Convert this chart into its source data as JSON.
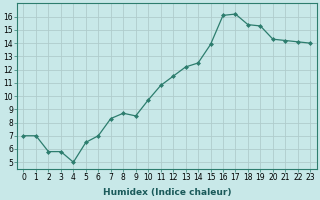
{
  "x": [
    0,
    1,
    2,
    3,
    4,
    5,
    6,
    7,
    8,
    9,
    10,
    11,
    12,
    13,
    14,
    15,
    16,
    17,
    18,
    19,
    20,
    21,
    22,
    23
  ],
  "y": [
    7.0,
    7.0,
    5.8,
    5.8,
    5.0,
    6.5,
    7.0,
    8.3,
    8.7,
    8.5,
    9.7,
    10.8,
    11.5,
    12.2,
    12.5,
    13.9,
    16.1,
    16.2,
    15.4,
    15.3,
    14.3,
    14.2,
    14.1,
    14.0
  ],
  "line_color": "#2d7d6e",
  "marker": "D",
  "marker_size": 2.0,
  "line_width": 0.9,
  "bg_color": "#c8e8e8",
  "grid_color": "#b0cccc",
  "xlabel": "Humidex (Indice chaleur)",
  "ylim": [
    4.5,
    17
  ],
  "xlim": [
    -0.5,
    23.5
  ],
  "yticks": [
    5,
    6,
    7,
    8,
    9,
    10,
    11,
    12,
    13,
    14,
    15,
    16
  ],
  "xticks": [
    0,
    1,
    2,
    3,
    4,
    5,
    6,
    7,
    8,
    9,
    10,
    11,
    12,
    13,
    14,
    15,
    16,
    17,
    18,
    19,
    20,
    21,
    22,
    23
  ],
  "xtick_labels": [
    "0",
    "1",
    "2",
    "3",
    "4",
    "5",
    "6",
    "7",
    "8",
    "9",
    "10",
    "11",
    "12",
    "13",
    "14",
    "15",
    "16",
    "17",
    "18",
    "19",
    "20",
    "21",
    "22",
    "23"
  ],
  "tick_fontsize": 5.5,
  "xlabel_fontsize": 6.5
}
